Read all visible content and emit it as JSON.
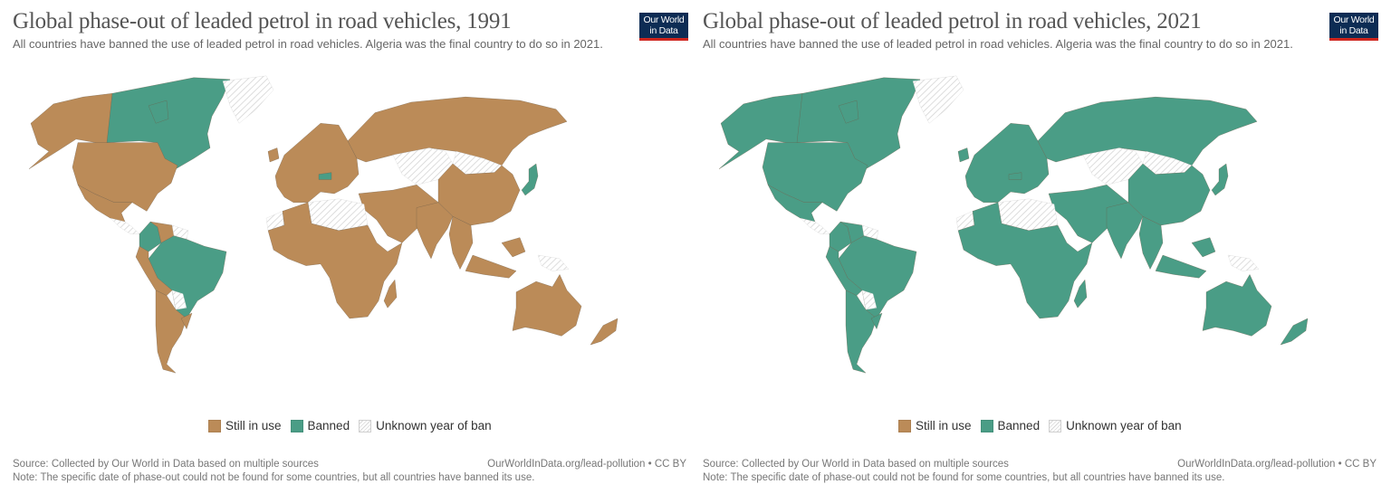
{
  "colors": {
    "still_in_use": "#bb8b58",
    "banned": "#4a9d86",
    "unknown_hatch": "#d8d8d8",
    "border": "#6b5a45",
    "logo_bg": "#0d2c54",
    "logo_bar": "#ce261e"
  },
  "panels": [
    {
      "title": "Global phase-out of leaded petrol in road vehicles, 1991",
      "subtitle": "All countries have banned the use of leaded petrol in road vehicles. Algeria was the final country to do so in 2021.",
      "logo": {
        "line1": "Our World",
        "line2": "in Data"
      },
      "legend": [
        {
          "label": "Still in use",
          "key": "still_in_use"
        },
        {
          "label": "Banned",
          "key": "banned"
        },
        {
          "label": "Unknown year of ban",
          "key": "unknown"
        }
      ],
      "source": "Source: Collected by Our World in Data based on multiple sources",
      "url": "OurWorldInData.org/lead-pollution • CC BY",
      "note": "Note: The specific date of phase-out could not be found for some countries, but all countries have banned its use.",
      "regions": {
        "alaska": "still_in_use",
        "canada": "banned",
        "greenland": "unknown",
        "usa": "still_in_use",
        "mexico": "still_in_use",
        "central_america": "unknown",
        "colombia": "banned",
        "venezuela": "still_in_use",
        "guianas": "unknown",
        "brazil": "banned",
        "andes_west": "still_in_use",
        "paraguay": "unknown",
        "argentina_chile": "still_in_use",
        "uruguay": "still_in_use",
        "europe": "still_in_use",
        "austria": "banned",
        "russia": "still_in_use",
        "central_asia": "unknown",
        "mongolia": "unknown",
        "china": "still_in_use",
        "japan": "banned",
        "middle_east": "still_in_use",
        "north_africa_libya_egypt": "unknown",
        "western_sahara": "unknown",
        "africa": "still_in_use",
        "madagascar": "still_in_use",
        "india": "still_in_use",
        "southeast_asia": "still_in_use",
        "indonesia": "still_in_use",
        "png": "unknown",
        "australia": "still_in_use",
        "new_zealand": "still_in_use"
      }
    },
    {
      "title": "Global phase-out of leaded petrol in road vehicles, 2021",
      "subtitle": "All countries have banned the use of leaded petrol in road vehicles. Algeria was the final country to do so in 2021.",
      "logo": {
        "line1": "Our World",
        "line2": "in Data"
      },
      "legend": [
        {
          "label": "Still in use",
          "key": "still_in_use"
        },
        {
          "label": "Banned",
          "key": "banned"
        },
        {
          "label": "Unknown year of ban",
          "key": "unknown"
        }
      ],
      "source": "Source: Collected by Our World in Data based on multiple sources",
      "url": "OurWorldInData.org/lead-pollution • CC BY",
      "note": "Note: The specific date of phase-out could not be found for some countries, but all countries have banned its use.",
      "regions": {
        "alaska": "banned",
        "canada": "banned",
        "greenland": "unknown",
        "usa": "banned",
        "mexico": "banned",
        "central_america": "unknown",
        "colombia": "banned",
        "venezuela": "banned",
        "guianas": "unknown",
        "brazil": "banned",
        "andes_west": "banned",
        "paraguay": "unknown",
        "argentina_chile": "banned",
        "uruguay": "banned",
        "europe": "banned",
        "austria": "banned",
        "russia": "banned",
        "central_asia": "unknown",
        "mongolia": "unknown",
        "china": "banned",
        "japan": "banned",
        "middle_east": "banned",
        "north_africa_libya_egypt": "unknown",
        "western_sahara": "unknown",
        "africa": "banned",
        "madagascar": "banned",
        "india": "banned",
        "southeast_asia": "banned",
        "indonesia": "banned",
        "png": "unknown",
        "australia": "banned",
        "new_zealand": "banned"
      }
    }
  ]
}
